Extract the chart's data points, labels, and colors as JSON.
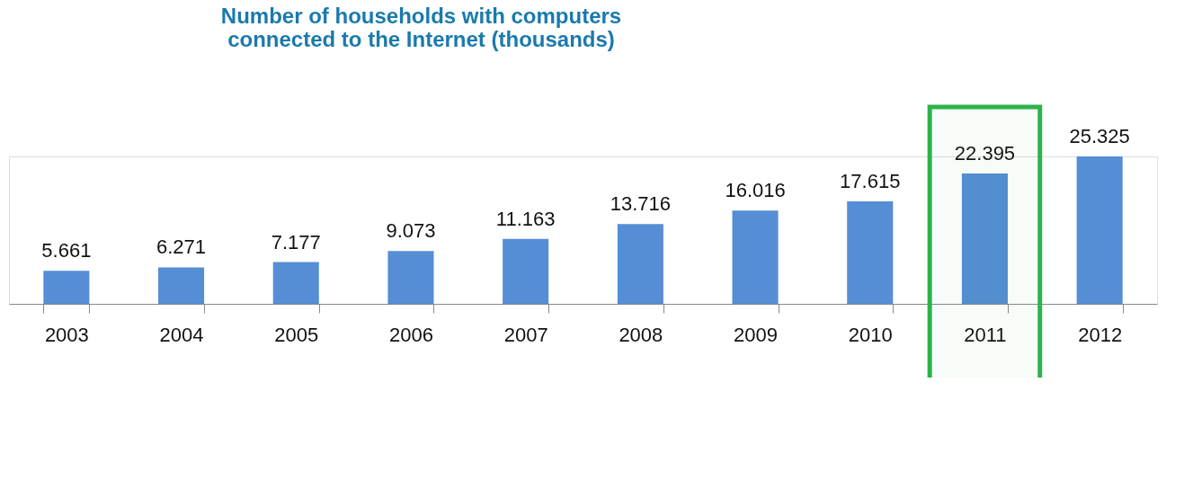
{
  "chart_data": {
    "type": "bar",
    "title": [
      "Number of households with computers",
      "connected to the Internet (thousands)"
    ],
    "categories": [
      "2003",
      "2004",
      "2005",
      "2006",
      "2007",
      "2008",
      "2009",
      "2010",
      "2011",
      "2012"
    ],
    "values": [
      5.661,
      6.271,
      7.177,
      9.073,
      11.163,
      13.716,
      16.016,
      17.615,
      22.395,
      25.325
    ],
    "color": "#558ed5",
    "data_labels": true,
    "grid": false,
    "bands": [
      {
        "axis": "x",
        "from": "2011",
        "to": "2011",
        "color": "#2db34a"
      }
    ]
  }
}
